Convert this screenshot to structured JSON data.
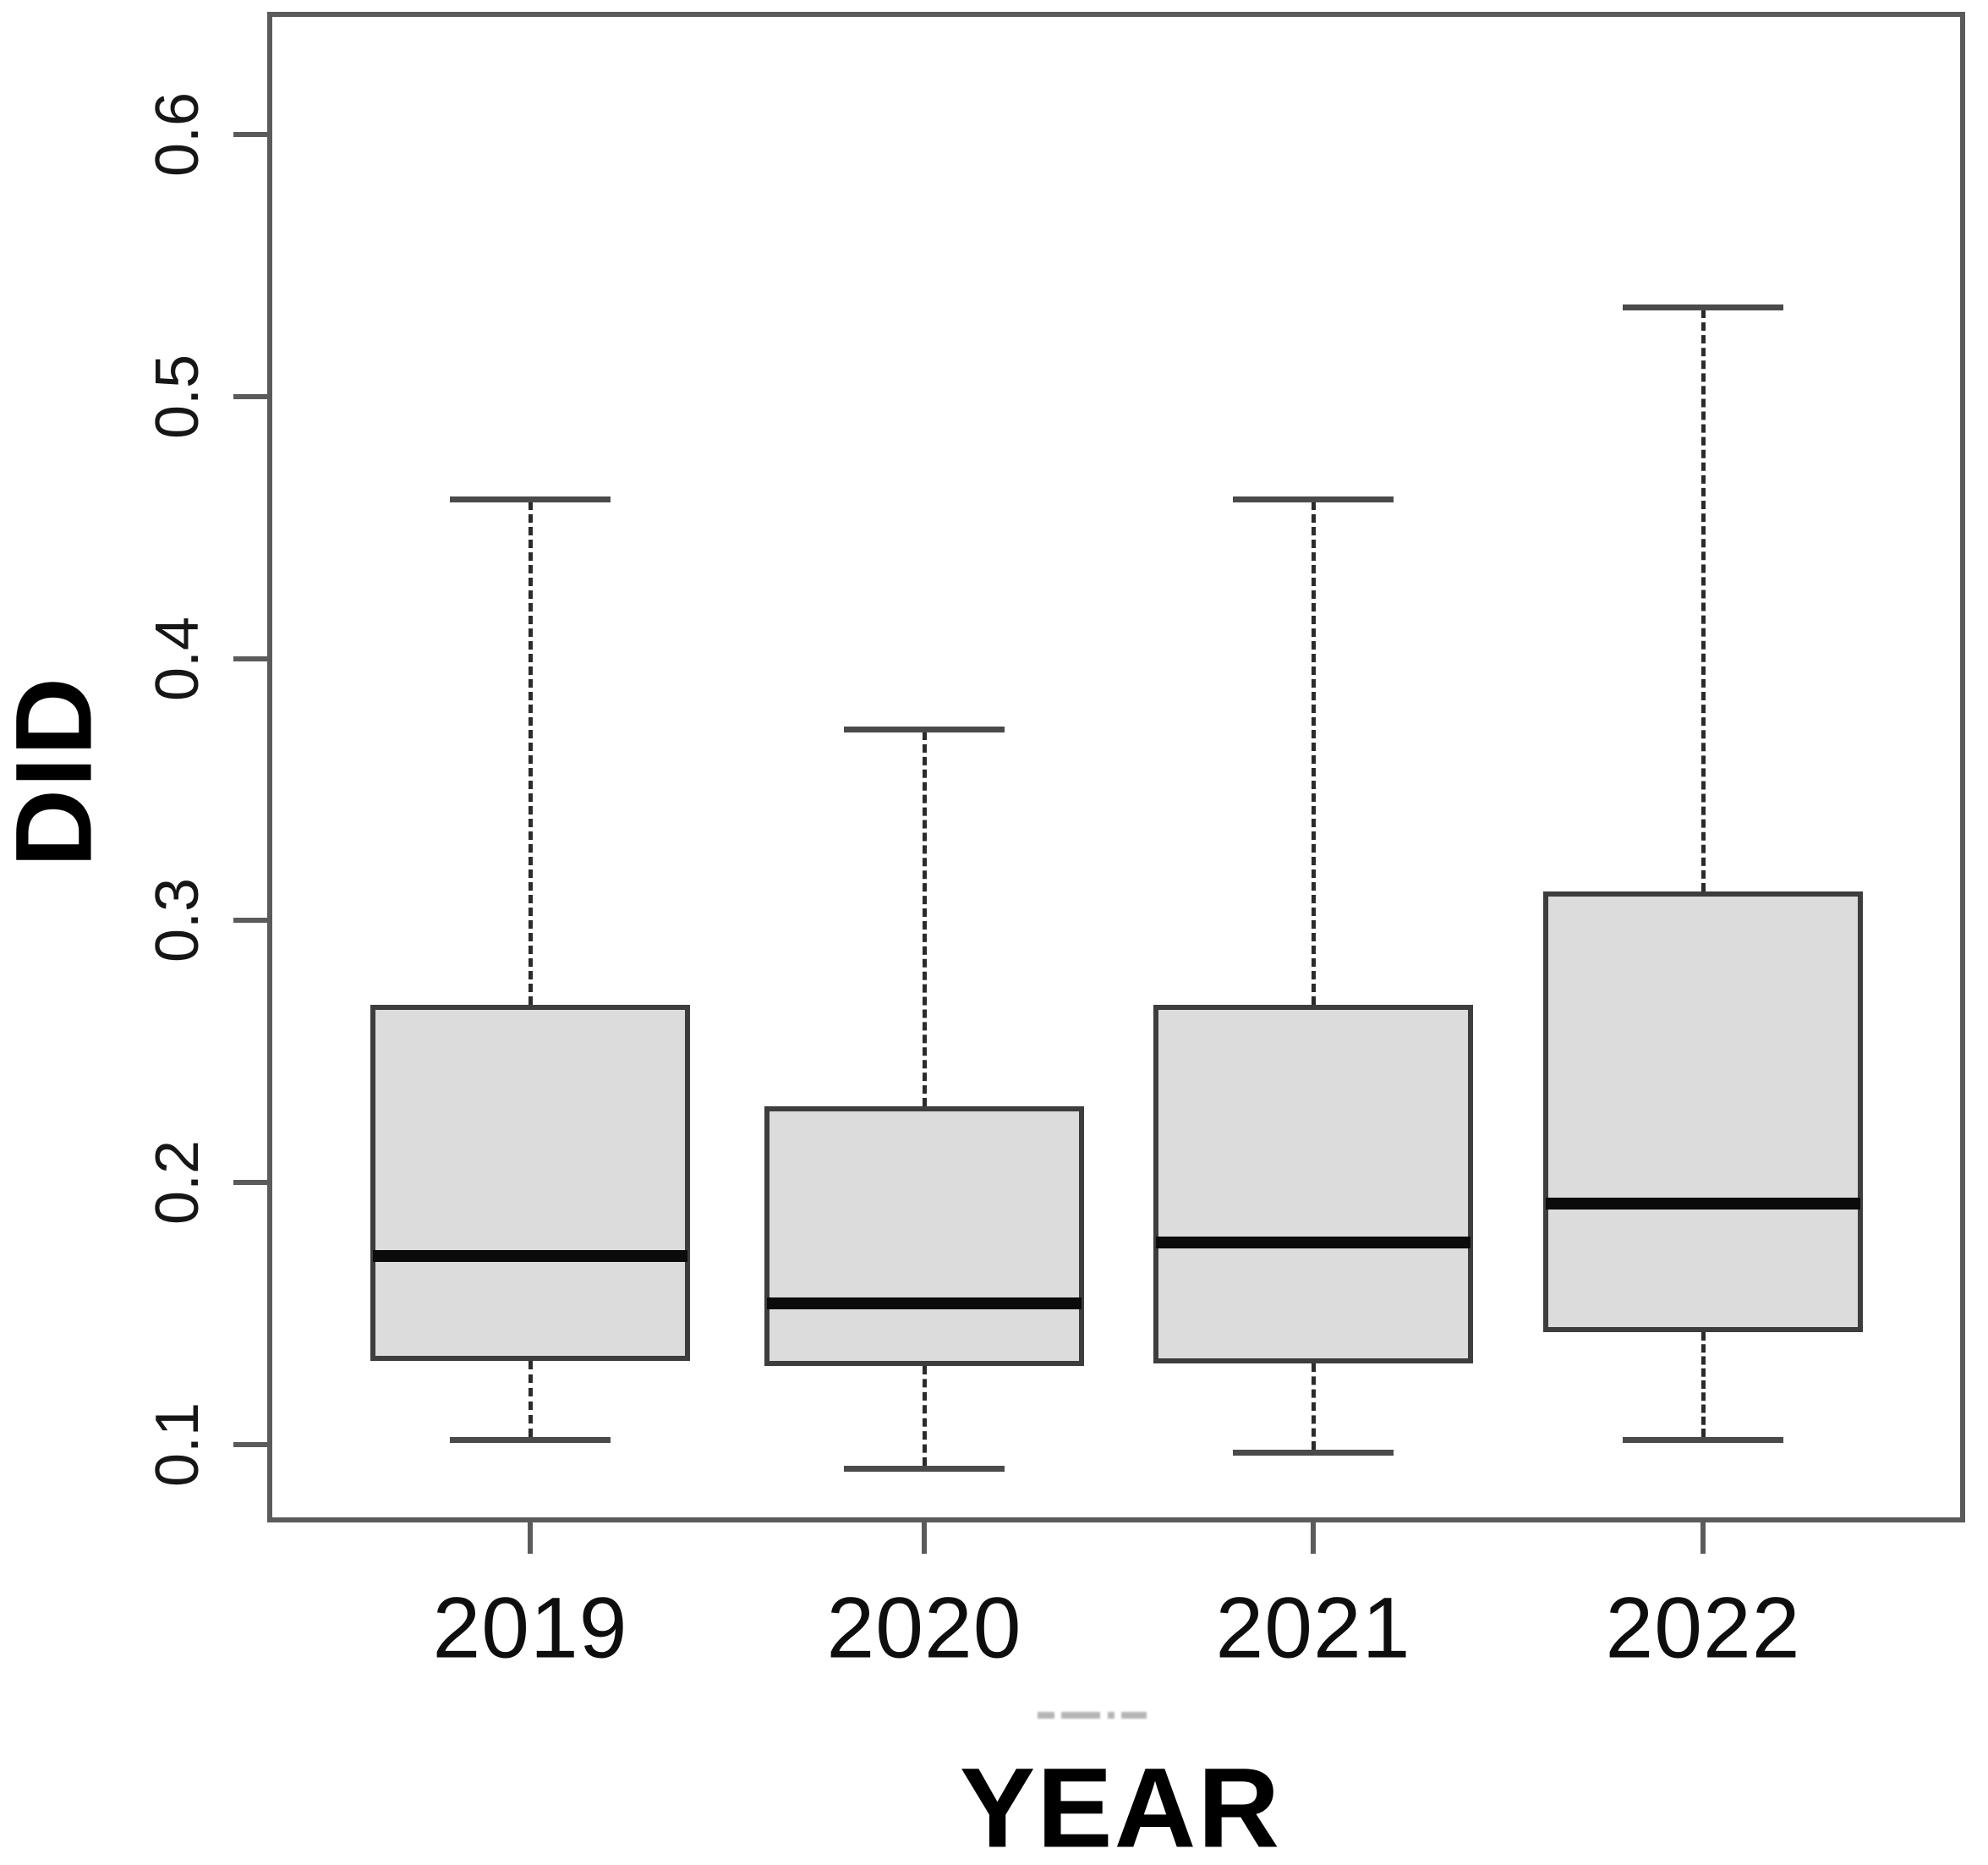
{
  "figure": {
    "background": "#ffffff",
    "artifact_smudge_present": true
  },
  "chart_data": {
    "type": "boxplot",
    "title": "",
    "xlabel": "YEAR",
    "ylabel": "DID",
    "categories": [
      "2019",
      "2020",
      "2021",
      "2022"
    ],
    "y_ticks": [
      0.1,
      0.2,
      0.3,
      0.4,
      0.5,
      0.6
    ],
    "ylim": [
      0.07,
      0.65
    ],
    "grid": false,
    "legend": "none",
    "box_fill": "#dcdcdc",
    "box_border": "#3d3d3d",
    "median_color": "#0b0b0b",
    "whisker_style": "dashed",
    "series": [
      {
        "label": "2019",
        "whisker_low": 0.102,
        "q1": 0.133,
        "median": 0.172,
        "q3": 0.267,
        "whisker_high": 0.461
      },
      {
        "label": "2020",
        "whisker_low": 0.091,
        "q1": 0.131,
        "median": 0.154,
        "q3": 0.228,
        "whisker_high": 0.373
      },
      {
        "label": "2021",
        "whisker_low": 0.097,
        "q1": 0.132,
        "median": 0.177,
        "q3": 0.267,
        "whisker_high": 0.461
      },
      {
        "label": "2022",
        "whisker_low": 0.102,
        "q1": 0.144,
        "median": 0.192,
        "q3": 0.31,
        "whisker_high": 0.534
      }
    ]
  }
}
